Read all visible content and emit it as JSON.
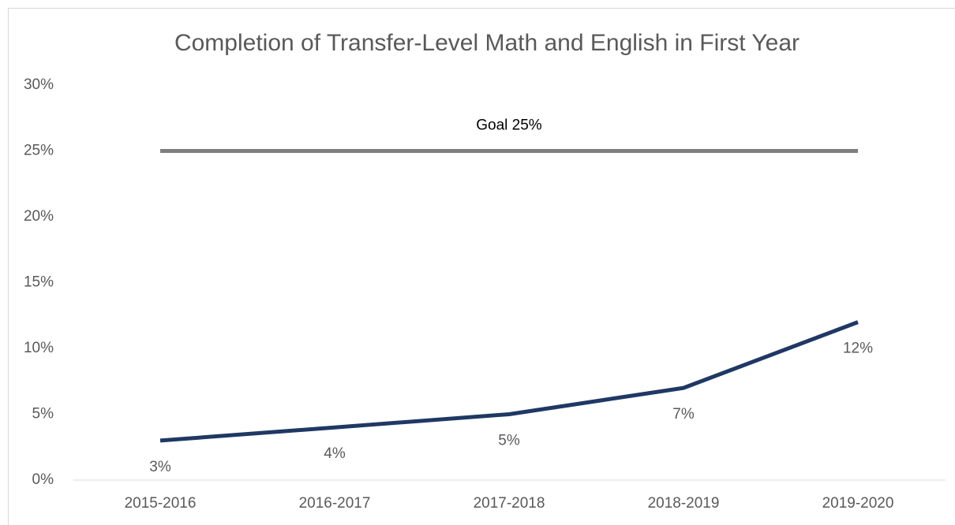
{
  "chart_data": {
    "type": "line",
    "title": "Completion of Transfer-Level Math and English in First Year",
    "categories": [
      "2015-2016",
      "2016-2017",
      "2017-2018",
      "2018-2019",
      "2019-2020"
    ],
    "series": [
      {
        "color": "#1f3864",
        "values": [
          3,
          4,
          5,
          7,
          12
        ],
        "value_labels": [
          "3%",
          "4%",
          "5%",
          "7%",
          "12%"
        ]
      },
      {
        "name": "Goal 25%",
        "color": "#7f7f7f",
        "values": [
          25,
          25,
          25,
          25,
          25
        ]
      }
    ],
    "ylim": [
      0,
      30
    ],
    "yticks": [
      {
        "value": 0,
        "label": "0%"
      },
      {
        "value": 5,
        "label": "5%"
      },
      {
        "value": 10,
        "label": "10%"
      },
      {
        "value": 15,
        "label": "15%"
      },
      {
        "value": 20,
        "label": "20%"
      },
      {
        "value": 25,
        "label": "25%"
      },
      {
        "value": 30,
        "label": "30%"
      }
    ],
    "grid": false
  }
}
